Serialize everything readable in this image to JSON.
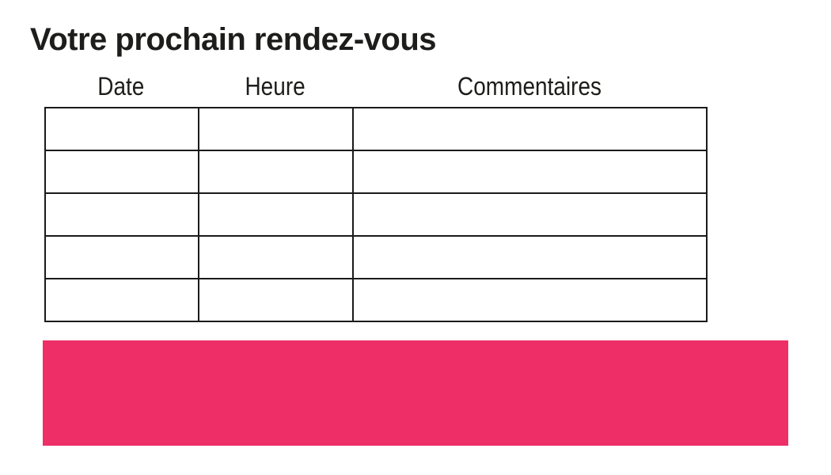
{
  "page": {
    "title": "Votre prochain rendez-vous"
  },
  "table": {
    "headers": [
      "Date",
      "Heure",
      "Commentaires"
    ],
    "rows": [
      [
        "",
        "",
        ""
      ],
      [
        "",
        "",
        ""
      ],
      [
        "",
        "",
        ""
      ],
      [
        "",
        "",
        ""
      ],
      [
        "",
        "",
        ""
      ]
    ]
  },
  "colors": {
    "accent": "#ED2E67",
    "grid": "#1A1A1A",
    "text": "#1D1D1B"
  }
}
